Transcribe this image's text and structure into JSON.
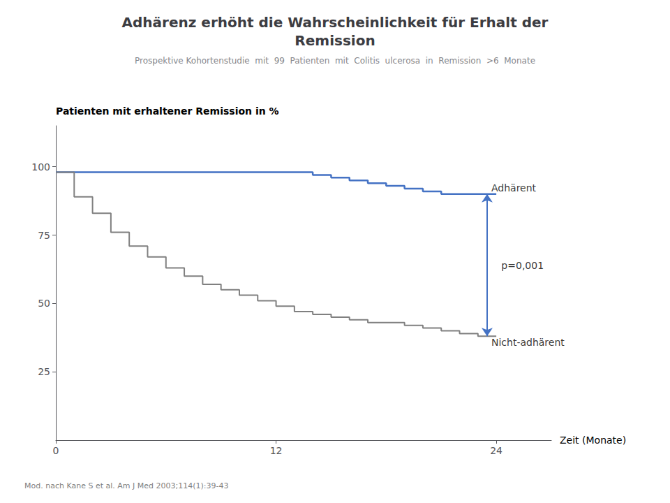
{
  "chart_data": {
    "type": "step",
    "title": "Adhärenz erhöht die Wahrscheinlichkeit für Erhalt der\nRemission",
    "subtitle": "Prospektive Kohortenstudie  mit  99  Patienten  mit  Colitis  ulcerosa  in  Remission  >6  Monate",
    "footnote": "Mod. nach Kane S et al. Am J Med 2003;114(1):39-43",
    "ylabel": "Patienten mit erhaltener Remission in %",
    "xlabel": "Zeit (Monate)",
    "x": [
      0,
      1,
      2,
      3,
      4,
      5,
      6,
      7,
      8,
      9,
      10,
      11,
      12,
      13,
      14,
      15,
      16,
      17,
      18,
      19,
      20,
      21,
      22,
      23,
      24
    ],
    "series": [
      {
        "name": "Adhärent",
        "color": "#4472C4",
        "values": [
          98,
          98,
          98,
          98,
          98,
          98,
          98,
          98,
          98,
          98,
          98,
          98,
          98,
          98,
          97,
          96,
          95,
          94,
          93,
          92,
          91,
          90,
          90,
          90,
          90
        ]
      },
      {
        "name": "Nicht-adhärent",
        "color": "#808080",
        "values": [
          98,
          89,
          83,
          76,
          71,
          67,
          63,
          60,
          57,
          55,
          53,
          51,
          49,
          47,
          46,
          45,
          44,
          43,
          43,
          42,
          41,
          40,
          39,
          38,
          38
        ]
      }
    ],
    "arrow": {
      "x": 23.5,
      "y_top": 90,
      "y_bottom": 38
    },
    "annotations": [
      {
        "text": "p=0,001",
        "x": 24.2,
        "y": 64
      }
    ],
    "xlim": [
      0,
      27
    ],
    "xticks": [
      0,
      12,
      24
    ],
    "ylim": [
      0,
      115
    ],
    "yticks": [
      25,
      50,
      75,
      100
    ],
    "grid": false
  }
}
